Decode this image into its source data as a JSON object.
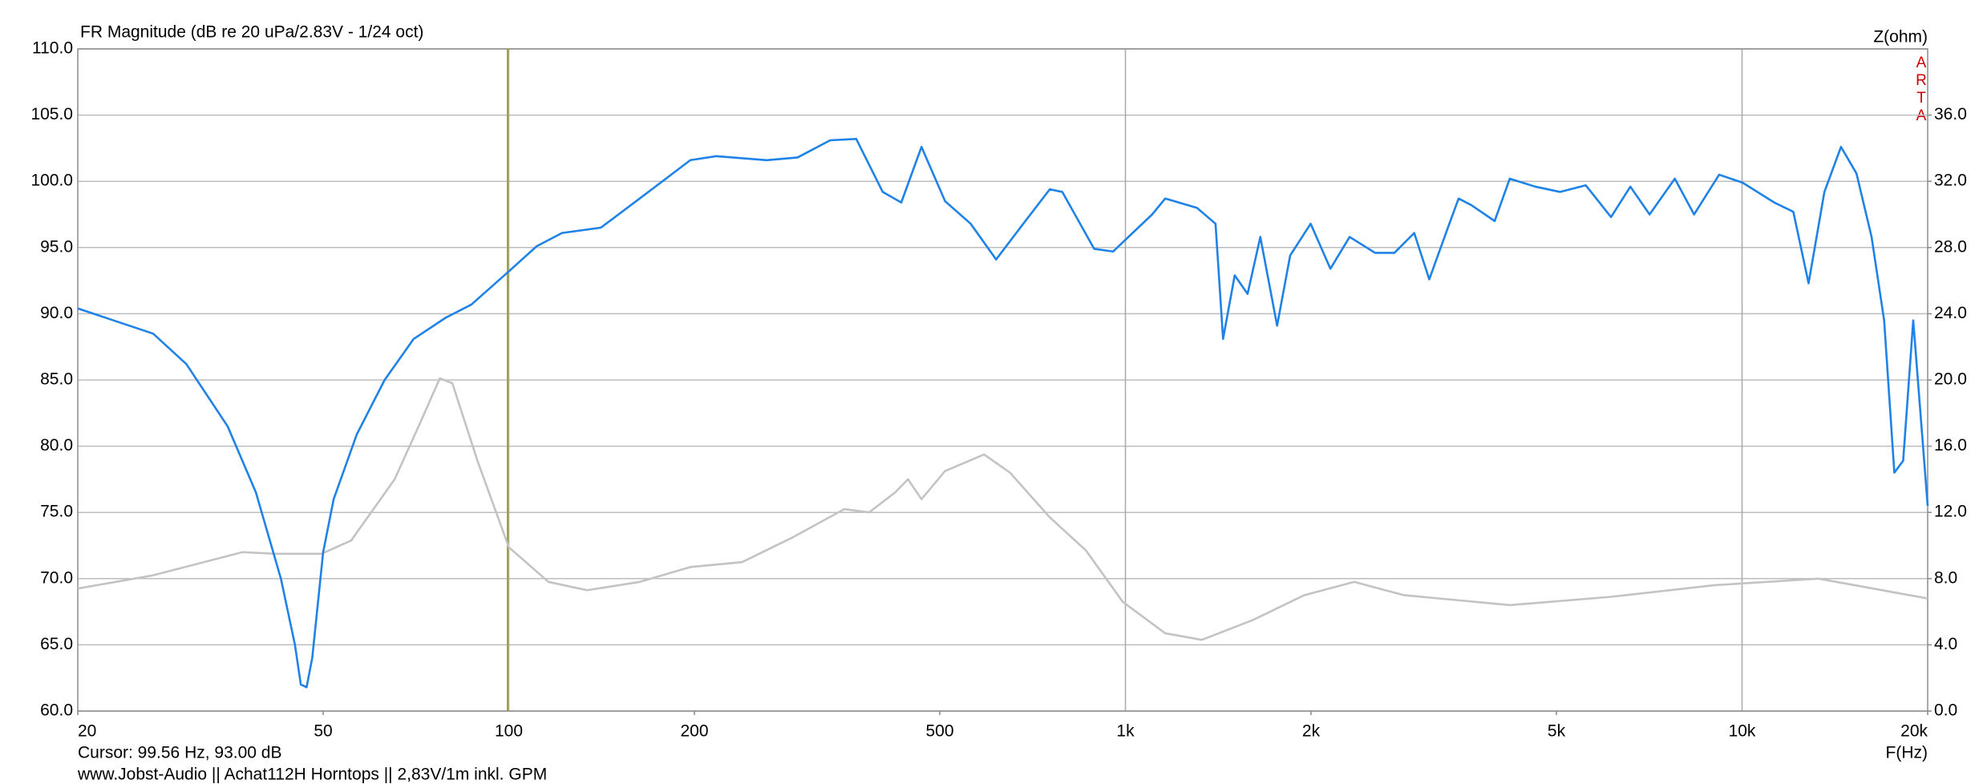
{
  "chart_data": {
    "type": "line",
    "title": "FR Magnitude (dB re 20 uPa/2.83V - 1/24 oct)",
    "x_label": "F(Hz)",
    "y2_label": "Z(ohm)",
    "watermark": "ARTA",
    "cursor": {
      "x": 99.56,
      "label": "Cursor: 99.56 Hz, 93.00 dB",
      "color": "#a5a500"
    },
    "footer": "www.Jobst-Audio  ||  Achat112H Horntops  ||  2,83V/1m inkl. GPM",
    "xscale": "log",
    "xlim": [
      20,
      20000
    ],
    "xticks": [
      20,
      50,
      100,
      200,
      500,
      {
        "value": 1000,
        "label": "1k"
      },
      {
        "value": 2000,
        "label": "2k"
      },
      {
        "value": 5000,
        "label": "5k"
      },
      {
        "value": 10000,
        "label": "10k"
      },
      {
        "value": 20000,
        "label": "20k"
      }
    ],
    "ylim": [
      60,
      110
    ],
    "yticks": [
      {
        "value": 60,
        "label": "60.0"
      },
      {
        "value": 65,
        "label": "65.0"
      },
      {
        "value": 70,
        "label": "70.0"
      },
      {
        "value": 75,
        "label": "75.0"
      },
      {
        "value": 80,
        "label": "80.0"
      },
      {
        "value": 85,
        "label": "85.0"
      },
      {
        "value": 90,
        "label": "90.0"
      },
      {
        "value": 95,
        "label": "95.0"
      },
      {
        "value": 100,
        "label": "100.0"
      },
      {
        "value": 105,
        "label": "105.0"
      },
      {
        "value": 110,
        "label": "110.0"
      }
    ],
    "y2lim": [
      0,
      40
    ],
    "y2ticks": [
      {
        "value": 0,
        "label": "0.0"
      },
      {
        "value": 4,
        "label": "4.0"
      },
      {
        "value": 8,
        "label": "8.0"
      },
      {
        "value": 12,
        "label": "12.0"
      },
      {
        "value": 16,
        "label": "16.0"
      },
      {
        "value": 20,
        "label": "20.0"
      },
      {
        "value": 24,
        "label": "24.0"
      },
      {
        "value": 28,
        "label": "28.0"
      },
      {
        "value": 32,
        "label": "32.0"
      },
      {
        "value": 36,
        "label": "36.0"
      }
    ],
    "grid": true,
    "series": [
      {
        "color": "#1e82e6",
        "axis": "y",
        "x": [
          20,
          26.5,
          30,
          35,
          38.9,
          42.7,
          45,
          46,
          47,
          48,
          50,
          52,
          56.7,
          62.9,
          70.1,
          79,
          87,
          100,
          111,
          122,
          141,
          163,
          197,
          217,
          262,
          294,
          332,
          366,
          404,
          433,
          467,
          510,
          561,
          617,
          683,
          754,
          790,
          890,
          955,
          1105,
          1160,
          1306,
          1400,
          1440,
          1504,
          1578,
          1655,
          1762,
          1850,
          1997,
          2150,
          2310,
          2540,
          2730,
          2940,
          3110,
          3310,
          3470,
          3640,
          3970,
          4200,
          4620,
          5070,
          5580,
          6130,
          6590,
          7080,
          7780,
          8360,
          9180,
          10020,
          11280,
          12110,
          12820,
          13600,
          14470,
          15330,
          16220,
          17000,
          17660,
          18250,
          18950,
          20000
        ],
        "values": [
          90.4,
          88.5,
          86.2,
          81.5,
          76.5,
          70,
          65,
          62,
          61.8,
          64,
          72,
          76,
          80.9,
          85,
          88.1,
          89.7,
          90.7,
          93.2,
          95.1,
          96.1,
          96.5,
          98.7,
          101.6,
          101.9,
          101.6,
          101.8,
          103.1,
          103.2,
          99.2,
          98.4,
          102.6,
          98.5,
          96.8,
          94.1,
          96.8,
          99.4,
          99.2,
          94.9,
          94.7,
          97.5,
          98.7,
          98,
          96.8,
          88.1,
          92.9,
          91.5,
          95.8,
          89.1,
          94.4,
          96.8,
          93.4,
          95.8,
          94.6,
          94.6,
          96.1,
          92.6,
          96.1,
          98.7,
          98.2,
          97,
          100.2,
          99.6,
          99.2,
          99.7,
          97.3,
          99.6,
          97.5,
          100.2,
          97.5,
          100.5,
          99.9,
          98.4,
          97.7,
          92.3,
          99.2,
          102.6,
          100.6,
          95.8,
          89.5,
          78,
          78.9,
          89.5,
          75.5
        ]
      },
      {
        "color": "#c3c3c3",
        "axis": "y2",
        "x": [
          20,
          26.5,
          37,
          41.8,
          49.7,
          55.5,
          65.3,
          72,
          77.3,
          81,
          89,
          100,
          116,
          134,
          163,
          197,
          239,
          289,
          350,
          384,
          423,
          444,
          467,
          510,
          590,
          650,
          754,
          863,
          990,
          1160,
          1330,
          1610,
          1950,
          2350,
          2830,
          4200,
          6130,
          9000,
          13300,
          20000
        ],
        "values": [
          7.4,
          8.2,
          9.6,
          9.5,
          9.5,
          10.3,
          14,
          17.5,
          20.1,
          19.8,
          15.1,
          9.9,
          7.8,
          7.3,
          7.8,
          8.7,
          9,
          10.5,
          12.2,
          12,
          13.2,
          14,
          12.8,
          14.5,
          15.5,
          14.4,
          11.7,
          9.7,
          6.6,
          4.7,
          4.3,
          5.5,
          7,
          7.8,
          7,
          6.4,
          6.9,
          7.6,
          8,
          6.8
        ]
      }
    ]
  }
}
